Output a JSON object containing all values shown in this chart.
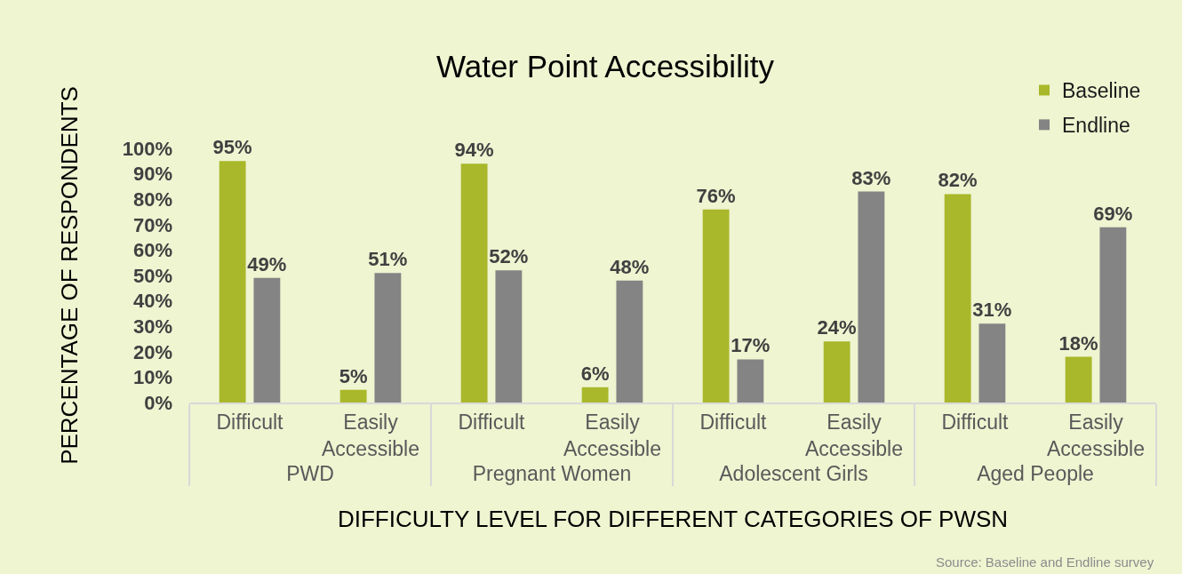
{
  "chart_data": {
    "type": "bar",
    "title": "Water Point Accessibility",
    "xlabel": "DIFFICULTY LEVEL FOR DIFFERENT CATEGORIES OF PWSN",
    "ylabel": "PERCENTAGE OF RESPONDENTS",
    "categories": [
      "Difficult",
      "Easily Accessible",
      "Difficult",
      "Easily Accessible",
      "Difficult",
      "Easily Accessible",
      "Difficult",
      "Easily Accessible"
    ],
    "series": [
      {
        "name": "Baseline",
        "color": "#a8b82a",
        "values": [
          95,
          5,
          94,
          6,
          76,
          24,
          82,
          18
        ],
        "value_labels": [
          "95%",
          "5%",
          "94%",
          "6%",
          "76%",
          "24%",
          "82%",
          "18%"
        ]
      },
      {
        "name": "Endline",
        "color": "#848484",
        "values": [
          49,
          51,
          52,
          48,
          17,
          83,
          31,
          69
        ],
        "value_labels": [
          "49%",
          "51%",
          "52%",
          "48%",
          "17%",
          "83%",
          "31%",
          "69%"
        ]
      }
    ],
    "ylim": [
      0,
      100
    ],
    "yticks": [
      {
        "value": 0,
        "label": "0%"
      },
      {
        "value": 10,
        "label": "10%"
      },
      {
        "value": 20,
        "label": "20%"
      },
      {
        "value": 30,
        "label": "30%"
      },
      {
        "value": 40,
        "label": "40%"
      },
      {
        "value": 50,
        "label": "50%"
      },
      {
        "value": 60,
        "label": "60%"
      },
      {
        "value": 70,
        "label": "70%"
      },
      {
        "value": 80,
        "label": "80%"
      },
      {
        "value": 90,
        "label": "90%"
      },
      {
        "value": 100,
        "label": "100%"
      }
    ],
    "legend": "top right",
    "annotations": [
      "PWD",
      "Pregnant Women",
      "Adolescent Girls",
      "Aged People",
      "Source: Baseline and Endline survey"
    ]
  }
}
